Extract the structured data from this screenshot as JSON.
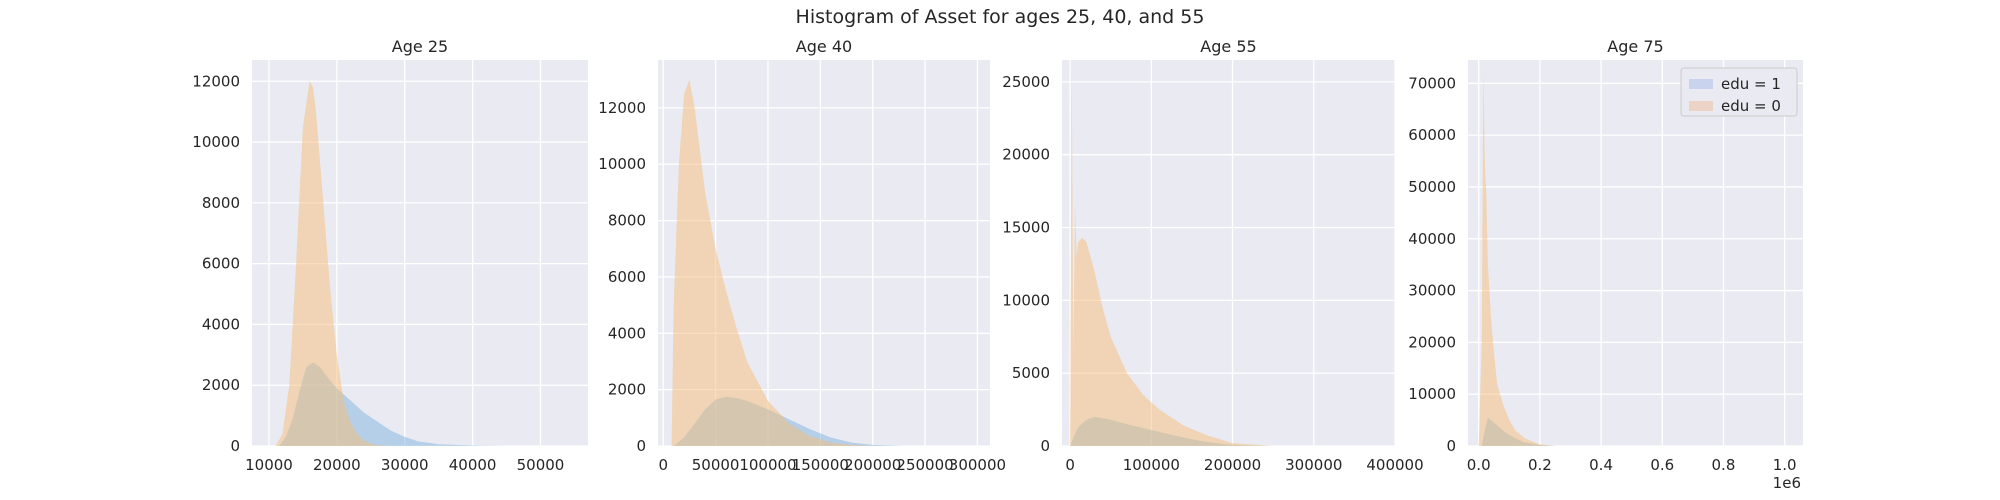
{
  "figure": {
    "title": "Histogram of Asset for ages 25, 40, and 55"
  },
  "colors": {
    "edu1": "#7fb4e0",
    "edu0": "#f5bd78",
    "legend_edu1": "#c9d3ee",
    "legend_edu0": "#ecd3c5"
  },
  "chart_data": [
    {
      "type": "area",
      "title": "Age 25",
      "xlim": [
        7500,
        57000
      ],
      "ylim": [
        0,
        12700
      ],
      "xticks": [
        10000,
        20000,
        30000,
        40000,
        50000
      ],
      "xtick_labels": [
        "10000",
        "20000",
        "30000",
        "40000",
        "50000"
      ],
      "yticks": [
        0,
        2000,
        4000,
        6000,
        8000,
        10000,
        12000
      ],
      "ytick_labels": [
        "0",
        "2000",
        "4000",
        "6000",
        "8000",
        "10000",
        "12000"
      ],
      "series": [
        {
          "name": "edu = 1",
          "x": [
            11500,
            12500,
            13500,
            14500,
            15500,
            16500,
            17500,
            18500,
            20000,
            22000,
            24000,
            26000,
            28000,
            30000,
            32000,
            35000,
            40000,
            45000
          ],
          "y": [
            0,
            300,
            900,
            1800,
            2600,
            2750,
            2600,
            2300,
            1900,
            1500,
            1100,
            800,
            500,
            300,
            150,
            60,
            15,
            0
          ]
        },
        {
          "name": "edu = 0",
          "x": [
            11000,
            12000,
            13000,
            14000,
            15000,
            16000,
            16500,
            17000,
            18000,
            19000,
            20000,
            21000,
            22000,
            23000,
            24000,
            25000,
            26000,
            28000
          ],
          "y": [
            0,
            400,
            2000,
            6000,
            10500,
            12000,
            11800,
            10800,
            8000,
            5200,
            3000,
            1500,
            800,
            400,
            180,
            80,
            30,
            0
          ]
        }
      ]
    },
    {
      "type": "area",
      "title": "Age 40",
      "xlim": [
        -5000,
        312000
      ],
      "ylim": [
        0,
        13700
      ],
      "xticks": [
        0,
        50000,
        100000,
        150000,
        200000,
        250000,
        300000
      ],
      "xtick_labels": [
        "0",
        "50000",
        "100000",
        "150000",
        "200000",
        "250000",
        "300000"
      ],
      "yticks": [
        0,
        2000,
        4000,
        6000,
        8000,
        10000,
        12000
      ],
      "ytick_labels": [
        "0",
        "2000",
        "4000",
        "6000",
        "8000",
        "10000",
        "12000"
      ],
      "series": [
        {
          "name": "edu = 1",
          "x": [
            10000,
            20000,
            30000,
            40000,
            50000,
            60000,
            70000,
            80000,
            100000,
            120000,
            140000,
            160000,
            180000,
            200000,
            230000
          ],
          "y": [
            0,
            300,
            800,
            1300,
            1650,
            1750,
            1700,
            1600,
            1300,
            950,
            600,
            300,
            120,
            40,
            0
          ]
        },
        {
          "name": "edu = 0",
          "x": [
            8000,
            10000,
            15000,
            20000,
            25000,
            30000,
            35000,
            40000,
            50000,
            60000,
            70000,
            80000,
            100000,
            120000,
            140000,
            160000,
            180000,
            200000
          ],
          "y": [
            0,
            5000,
            10000,
            12500,
            13000,
            12000,
            10500,
            9000,
            7000,
            5500,
            4200,
            3000,
            1600,
            800,
            350,
            120,
            40,
            0
          ]
        }
      ]
    },
    {
      "type": "area",
      "title": "Age 55",
      "xlim": [
        -10000,
        400000
      ],
      "ylim": [
        0,
        26500
      ],
      "xticks": [
        0,
        100000,
        200000,
        300000,
        400000
      ],
      "xtick_labels": [
        "0",
        "100000",
        "200000",
        "300000",
        "400000"
      ],
      "yticks": [
        0,
        5000,
        10000,
        15000,
        20000,
        25000
      ],
      "ytick_labels": [
        "0",
        "5000",
        "10000",
        "15000",
        "20000",
        "25000"
      ],
      "series": [
        {
          "name": "edu = 1",
          "x": [
            0,
            5000,
            10000,
            20000,
            30000,
            40000,
            50000,
            70000,
            100000,
            130000,
            160000,
            190000,
            220000,
            250000
          ],
          "y": [
            0,
            700,
            1300,
            1800,
            2000,
            1900,
            1800,
            1500,
            1100,
            700,
            350,
            120,
            30,
            0
          ]
        },
        {
          "name": "edu = 0",
          "x": [
            0,
            2000,
            4000,
            6000,
            8000,
            10000,
            15000,
            20000,
            30000,
            40000,
            50000,
            70000,
            90000,
            110000,
            140000,
            170000,
            200000,
            250000
          ],
          "y": [
            0,
            26000,
            6000,
            16500,
            13000,
            14000,
            14300,
            14000,
            12000,
            9500,
            7500,
            5000,
            3500,
            2500,
            1400,
            700,
            200,
            0
          ]
        }
      ]
    },
    {
      "type": "area",
      "title": "Age 75",
      "xlim": [
        -0.035,
        1.06
      ],
      "ylim": [
        0,
        74500
      ],
      "x_offset_label": "1e6",
      "xticks": [
        0.0,
        0.2,
        0.4,
        0.6,
        0.8,
        1.0
      ],
      "xtick_labels": [
        "0.0",
        "0.2",
        "0.4",
        "0.6",
        "0.8",
        "1.0"
      ],
      "yticks": [
        0,
        10000,
        20000,
        30000,
        40000,
        50000,
        60000,
        70000
      ],
      "ytick_labels": [
        "0",
        "10000",
        "20000",
        "30000",
        "40000",
        "50000",
        "60000",
        "70000"
      ],
      "legend": {
        "position": "top-right",
        "entries": [
          "edu = 1",
          "edu = 0"
        ]
      },
      "series": [
        {
          "name": "edu = 1",
          "x": [
            0.01,
            0.02,
            0.03,
            0.04,
            0.05,
            0.07,
            0.09,
            0.12,
            0.15,
            0.2,
            0.25
          ],
          "y": [
            0,
            3000,
            5500,
            5000,
            4500,
            3500,
            2500,
            1500,
            700,
            200,
            0
          ]
        },
        {
          "name": "edu = 0",
          "x": [
            0.0,
            0.01,
            0.015,
            0.02,
            0.025,
            0.03,
            0.035,
            0.04,
            0.05,
            0.06,
            0.08,
            0.1,
            0.12,
            0.15,
            0.2,
            0.25
          ],
          "y": [
            0,
            20000,
            72000,
            55000,
            48000,
            35000,
            30000,
            25000,
            18000,
            12000,
            8000,
            5000,
            3000,
            1500,
            300,
            0
          ]
        }
      ]
    }
  ]
}
